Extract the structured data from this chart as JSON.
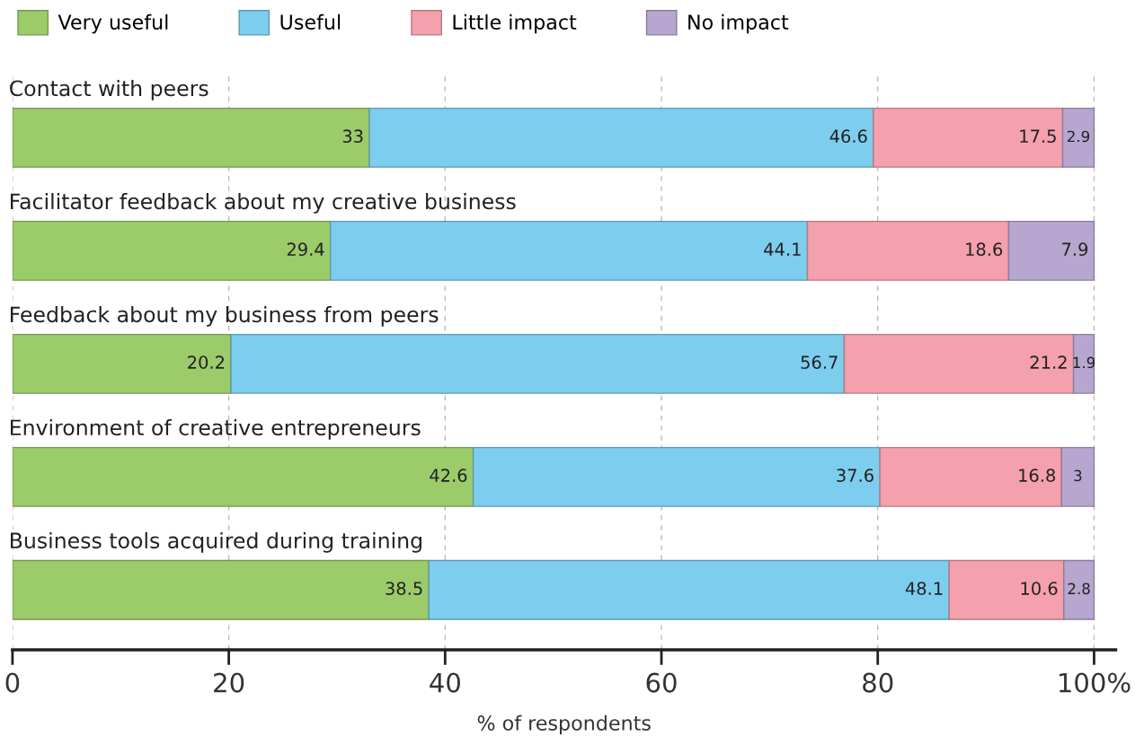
{
  "chart_data": {
    "type": "bar",
    "orientation": "horizontal",
    "stacked": true,
    "xlabel": "% of respondents",
    "categories": [
      "Contact with peers",
      "Facilitator feedback about my creative business",
      "Feedback about my business from peers",
      "Environment of creative entrepreneurs",
      "Business tools acquired during training"
    ],
    "series": [
      {
        "name": "Very useful",
        "color": "#9ccb6a",
        "values": [
          33,
          29.4,
          20.2,
          42.6,
          38.5
        ]
      },
      {
        "name": "Useful",
        "color": "#7dcdee",
        "values": [
          46.6,
          44.1,
          56.7,
          37.6,
          48.1
        ]
      },
      {
        "name": "Little impact",
        "color": "#f4a0ad",
        "values": [
          17.5,
          18.6,
          21.2,
          16.8,
          10.6
        ]
      },
      {
        "name": "No impact",
        "color": "#b7a6cf",
        "values": [
          2.9,
          7.9,
          1.9,
          3,
          2.8
        ]
      }
    ],
    "xlim": [
      0,
      102
    ],
    "xticks": [
      0,
      20,
      40,
      60,
      80,
      {
        "value": 100,
        "label": "100%"
      }
    ],
    "grid": "x",
    "legend": "top left",
    "data_labels": true
  }
}
